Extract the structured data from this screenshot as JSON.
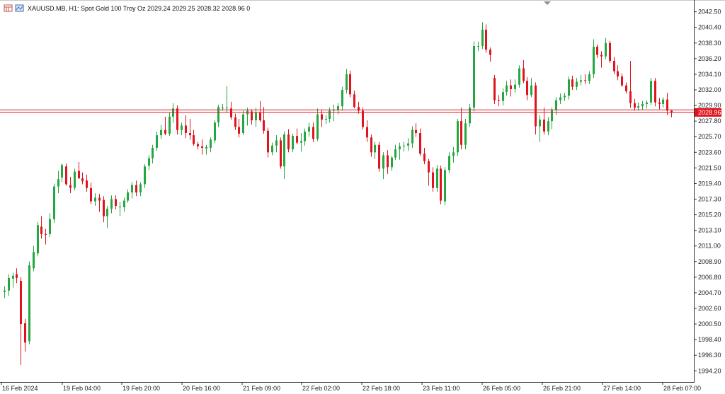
{
  "header": {
    "symbol": "XAUUSD.MB",
    "timeframe": "H1",
    "description": "Spot Gold 100 Troy Oz",
    "ohlc": "2029.24 2029.25 2028.32 2028.96",
    "volume": "0",
    "text": "XAUUSD.MB, H1:  Spot Gold 100 Troy Oz  2029.24 2029.25 2028.32 2028.96  0"
  },
  "icons": [
    "chart-window-icon",
    "trade-panel-icon"
  ],
  "colors": {
    "bull": "#26a641",
    "bear": "#e0141e",
    "wick_bull": "#26a641",
    "wick_bear": "#e0141e",
    "price_line": "#d81b2a",
    "price_tag_bg": "#e0141e",
    "axis": "#222222"
  },
  "chart_data": {
    "type": "candlestick",
    "symbol": "XAUUSD.MB",
    "timeframe": "H1",
    "ylim": [
      1992.8,
      2043.8
    ],
    "y_ticks": [
      "2042.50",
      "2040.40",
      "2038.30",
      "2036.20",
      "2034.10",
      "2032.00",
      "2029.90",
      "2027.80",
      "2025.70",
      "2023.60",
      "2021.50",
      "2019.40",
      "2017.30",
      "2015.20",
      "2013.10",
      "2011.00",
      "2008.90",
      "2006.80",
      "2004.70",
      "2002.60",
      "2000.50",
      "1998.40",
      "1996.30",
      "1994.20"
    ],
    "x_labels": [
      "16 Feb 2024",
      "19 Feb 04:00",
      "19 Feb 20:00",
      "20 Feb 16:00",
      "21 Feb 09:00",
      "22 Feb 02:00",
      "22 Feb 18:00",
      "23 Feb 11:00",
      "26 Feb 05:00",
      "26 Feb 21:00",
      "27 Feb 14:00",
      "28 Feb 07:00"
    ],
    "current_price": "2028.96",
    "current_price_value": 2028.96,
    "ask_price_value": 2029.3,
    "candles": [
      {
        "o": 2004.8,
        "h": 2005.6,
        "l": 2004.0,
        "c": 2005.0
      },
      {
        "o": 2005.0,
        "h": 2007.2,
        "l": 2004.3,
        "c": 2006.7
      },
      {
        "o": 2006.6,
        "h": 2007.4,
        "l": 2005.4,
        "c": 2007.0
      },
      {
        "o": 2007.2,
        "h": 2008.0,
        "l": 2006.0,
        "c": 2006.7
      },
      {
        "o": 2006.3,
        "h": 2006.8,
        "l": 1995.0,
        "c": 2000.5
      },
      {
        "o": 2000.6,
        "h": 2001.2,
        "l": 1996.8,
        "c": 1998.0
      },
      {
        "o": 1998.2,
        "h": 2008.9,
        "l": 1997.8,
        "c": 2008.4
      },
      {
        "o": 2008.0,
        "h": 2011.0,
        "l": 2007.6,
        "c": 2010.2
      },
      {
        "o": 2010.0,
        "h": 2014.2,
        "l": 2009.6,
        "c": 2013.8
      },
      {
        "o": 2013.6,
        "h": 2015.0,
        "l": 2012.0,
        "c": 2012.6
      },
      {
        "o": 2012.6,
        "h": 2013.3,
        "l": 2011.2,
        "c": 2012.5
      },
      {
        "o": 2012.6,
        "h": 2015.4,
        "l": 2012.2,
        "c": 2014.6
      },
      {
        "o": 2014.6,
        "h": 2019.4,
        "l": 2014.1,
        "c": 2019.0
      },
      {
        "o": 2019.0,
        "h": 2021.1,
        "l": 2018.1,
        "c": 2020.0
      },
      {
        "o": 2020.2,
        "h": 2022.1,
        "l": 2019.6,
        "c": 2021.9
      },
      {
        "o": 2021.7,
        "h": 2022.1,
        "l": 2019.1,
        "c": 2019.3
      },
      {
        "o": 2019.2,
        "h": 2020.3,
        "l": 2018.1,
        "c": 2018.8
      },
      {
        "o": 2018.8,
        "h": 2021.4,
        "l": 2018.5,
        "c": 2021.0
      },
      {
        "o": 2021.1,
        "h": 2022.3,
        "l": 2020.0,
        "c": 2020.1
      },
      {
        "o": 2020.1,
        "h": 2020.9,
        "l": 2019.3,
        "c": 2019.7
      },
      {
        "o": 2019.8,
        "h": 2020.6,
        "l": 2018.3,
        "c": 2018.8
      },
      {
        "o": 2018.8,
        "h": 2019.5,
        "l": 2016.6,
        "c": 2017.0
      },
      {
        "o": 2017.0,
        "h": 2018.1,
        "l": 2016.4,
        "c": 2017.5
      },
      {
        "o": 2017.5,
        "h": 2018.0,
        "l": 2015.6,
        "c": 2017.1
      },
      {
        "o": 2017.2,
        "h": 2017.7,
        "l": 2014.2,
        "c": 2015.0
      },
      {
        "o": 2015.0,
        "h": 2016.4,
        "l": 2013.4,
        "c": 2016.0
      },
      {
        "o": 2016.0,
        "h": 2017.8,
        "l": 2015.4,
        "c": 2017.3
      },
      {
        "o": 2017.3,
        "h": 2017.8,
        "l": 2015.9,
        "c": 2016.4
      },
      {
        "o": 2016.3,
        "h": 2016.9,
        "l": 2015.0,
        "c": 2016.3
      },
      {
        "o": 2016.2,
        "h": 2017.5,
        "l": 2015.6,
        "c": 2017.1
      },
      {
        "o": 2017.1,
        "h": 2018.6,
        "l": 2016.8,
        "c": 2018.2
      },
      {
        "o": 2018.2,
        "h": 2019.6,
        "l": 2017.4,
        "c": 2019.2
      },
      {
        "o": 2019.2,
        "h": 2019.8,
        "l": 2017.7,
        "c": 2018.2
      },
      {
        "o": 2018.2,
        "h": 2019.6,
        "l": 2017.7,
        "c": 2019.3
      },
      {
        "o": 2019.3,
        "h": 2022.0,
        "l": 2018.8,
        "c": 2021.7
      },
      {
        "o": 2021.8,
        "h": 2023.2,
        "l": 2021.2,
        "c": 2022.8
      },
      {
        "o": 2022.8,
        "h": 2024.6,
        "l": 2022.1,
        "c": 2024.2
      },
      {
        "o": 2024.2,
        "h": 2026.4,
        "l": 2023.8,
        "c": 2025.9
      },
      {
        "o": 2025.9,
        "h": 2027.3,
        "l": 2025.4,
        "c": 2026.6
      },
      {
        "o": 2026.6,
        "h": 2028.4,
        "l": 2025.9,
        "c": 2026.1
      },
      {
        "o": 2026.1,
        "h": 2029.0,
        "l": 2025.8,
        "c": 2028.4
      },
      {
        "o": 2028.4,
        "h": 2030.2,
        "l": 2027.6,
        "c": 2029.5
      },
      {
        "o": 2029.5,
        "h": 2029.9,
        "l": 2026.0,
        "c": 2026.6
      },
      {
        "o": 2026.6,
        "h": 2027.6,
        "l": 2025.9,
        "c": 2027.2
      },
      {
        "o": 2027.2,
        "h": 2028.6,
        "l": 2025.5,
        "c": 2026.2
      },
      {
        "o": 2026.2,
        "h": 2028.1,
        "l": 2025.3,
        "c": 2025.9
      },
      {
        "o": 2025.9,
        "h": 2026.6,
        "l": 2024.5,
        "c": 2024.7
      },
      {
        "o": 2024.7,
        "h": 2025.0,
        "l": 2024.0,
        "c": 2024.4
      },
      {
        "o": 2024.4,
        "h": 2025.3,
        "l": 2023.3,
        "c": 2024.2
      },
      {
        "o": 2024.1,
        "h": 2024.6,
        "l": 2023.3,
        "c": 2024.3
      },
      {
        "o": 2024.2,
        "h": 2025.6,
        "l": 2023.6,
        "c": 2025.3
      },
      {
        "o": 2025.2,
        "h": 2027.9,
        "l": 2024.8,
        "c": 2027.6
      },
      {
        "o": 2027.6,
        "h": 2030.0,
        "l": 2027.0,
        "c": 2029.7
      },
      {
        "o": 2029.6,
        "h": 2030.1,
        "l": 2029.2,
        "c": 2029.6
      },
      {
        "o": 2029.6,
        "h": 2032.5,
        "l": 2029.0,
        "c": 2029.6
      },
      {
        "o": 2029.5,
        "h": 2030.4,
        "l": 2028.0,
        "c": 2028.3
      },
      {
        "o": 2028.3,
        "h": 2028.8,
        "l": 2026.6,
        "c": 2027.0
      },
      {
        "o": 2027.0,
        "h": 2028.1,
        "l": 2025.6,
        "c": 2026.1
      },
      {
        "o": 2026.2,
        "h": 2029.2,
        "l": 2025.9,
        "c": 2028.7
      },
      {
        "o": 2028.7,
        "h": 2029.6,
        "l": 2027.2,
        "c": 2029.2
      },
      {
        "o": 2029.1,
        "h": 2029.4,
        "l": 2027.3,
        "c": 2027.9
      },
      {
        "o": 2027.9,
        "h": 2029.6,
        "l": 2027.0,
        "c": 2029.0
      },
      {
        "o": 2029.0,
        "h": 2030.5,
        "l": 2027.7,
        "c": 2027.9
      },
      {
        "o": 2027.9,
        "h": 2029.7,
        "l": 2026.1,
        "c": 2026.5
      },
      {
        "o": 2026.5,
        "h": 2026.9,
        "l": 2022.9,
        "c": 2023.6
      },
      {
        "o": 2023.6,
        "h": 2024.9,
        "l": 2023.2,
        "c": 2024.5
      },
      {
        "o": 2024.5,
        "h": 2025.9,
        "l": 2023.6,
        "c": 2025.2
      },
      {
        "o": 2025.2,
        "h": 2025.6,
        "l": 2021.4,
        "c": 2021.7
      },
      {
        "o": 2021.7,
        "h": 2026.4,
        "l": 2020.0,
        "c": 2026.0
      },
      {
        "o": 2026.0,
        "h": 2026.7,
        "l": 2023.6,
        "c": 2024.0
      },
      {
        "o": 2024.0,
        "h": 2026.1,
        "l": 2023.6,
        "c": 2025.8
      },
      {
        "o": 2025.8,
        "h": 2026.8,
        "l": 2024.7,
        "c": 2024.9
      },
      {
        "o": 2024.9,
        "h": 2026.2,
        "l": 2023.7,
        "c": 2025.1
      },
      {
        "o": 2025.1,
        "h": 2026.8,
        "l": 2024.5,
        "c": 2026.4
      },
      {
        "o": 2026.4,
        "h": 2027.6,
        "l": 2025.7,
        "c": 2027.0
      },
      {
        "o": 2027.0,
        "h": 2027.6,
        "l": 2025.0,
        "c": 2025.4
      },
      {
        "o": 2025.4,
        "h": 2029.5,
        "l": 2025.1,
        "c": 2028.7
      },
      {
        "o": 2028.7,
        "h": 2029.3,
        "l": 2027.0,
        "c": 2028.0
      },
      {
        "o": 2028.0,
        "h": 2028.6,
        "l": 2027.4,
        "c": 2028.1
      },
      {
        "o": 2028.1,
        "h": 2029.6,
        "l": 2027.6,
        "c": 2029.2
      },
      {
        "o": 2029.2,
        "h": 2030.0,
        "l": 2027.8,
        "c": 2029.3
      },
      {
        "o": 2029.3,
        "h": 2030.2,
        "l": 2028.7,
        "c": 2029.8
      },
      {
        "o": 2029.8,
        "h": 2032.4,
        "l": 2029.2,
        "c": 2032.0
      },
      {
        "o": 2032.0,
        "h": 2034.8,
        "l": 2031.5,
        "c": 2034.1
      },
      {
        "o": 2034.1,
        "h": 2034.6,
        "l": 2031.0,
        "c": 2031.4
      },
      {
        "o": 2031.4,
        "h": 2031.9,
        "l": 2029.5,
        "c": 2029.7
      },
      {
        "o": 2029.7,
        "h": 2030.4,
        "l": 2028.8,
        "c": 2029.2
      },
      {
        "o": 2029.2,
        "h": 2029.6,
        "l": 2026.7,
        "c": 2027.0
      },
      {
        "o": 2027.0,
        "h": 2027.9,
        "l": 2025.0,
        "c": 2025.6
      },
      {
        "o": 2025.6,
        "h": 2026.0,
        "l": 2023.0,
        "c": 2023.6
      },
      {
        "o": 2023.6,
        "h": 2025.0,
        "l": 2022.7,
        "c": 2024.6
      },
      {
        "o": 2024.6,
        "h": 2025.0,
        "l": 2021.0,
        "c": 2021.4
      },
      {
        "o": 2021.4,
        "h": 2023.6,
        "l": 2020.0,
        "c": 2023.2
      },
      {
        "o": 2023.2,
        "h": 2023.9,
        "l": 2020.7,
        "c": 2021.6
      },
      {
        "o": 2021.6,
        "h": 2023.1,
        "l": 2021.1,
        "c": 2022.9
      },
      {
        "o": 2022.9,
        "h": 2024.6,
        "l": 2022.6,
        "c": 2024.0
      },
      {
        "o": 2024.0,
        "h": 2024.9,
        "l": 2022.6,
        "c": 2024.4
      },
      {
        "o": 2024.4,
        "h": 2025.0,
        "l": 2023.7,
        "c": 2024.5
      },
      {
        "o": 2024.5,
        "h": 2025.5,
        "l": 2023.8,
        "c": 2024.8
      },
      {
        "o": 2024.8,
        "h": 2027.1,
        "l": 2024.2,
        "c": 2026.6
      },
      {
        "o": 2026.6,
        "h": 2027.5,
        "l": 2025.7,
        "c": 2026.2
      },
      {
        "o": 2026.2,
        "h": 2026.8,
        "l": 2023.1,
        "c": 2023.4
      },
      {
        "o": 2023.4,
        "h": 2024.2,
        "l": 2022.0,
        "c": 2022.4
      },
      {
        "o": 2022.4,
        "h": 2022.7,
        "l": 2019.1,
        "c": 2020.9
      },
      {
        "o": 2020.9,
        "h": 2021.6,
        "l": 2018.3,
        "c": 2018.8
      },
      {
        "o": 2018.8,
        "h": 2021.9,
        "l": 2018.3,
        "c": 2021.4
      },
      {
        "o": 2021.4,
        "h": 2021.8,
        "l": 2016.6,
        "c": 2017.1
      },
      {
        "o": 2017.0,
        "h": 2021.6,
        "l": 2016.5,
        "c": 2021.2
      },
      {
        "o": 2021.2,
        "h": 2023.6,
        "l": 2020.8,
        "c": 2023.1
      },
      {
        "o": 2023.1,
        "h": 2024.3,
        "l": 2022.2,
        "c": 2023.6
      },
      {
        "o": 2023.6,
        "h": 2028.1,
        "l": 2023.1,
        "c": 2027.8
      },
      {
        "o": 2027.8,
        "h": 2029.6,
        "l": 2024.0,
        "c": 2024.6
      },
      {
        "o": 2024.6,
        "h": 2028.1,
        "l": 2024.0,
        "c": 2027.5
      },
      {
        "o": 2027.5,
        "h": 2030.1,
        "l": 2027.0,
        "c": 2029.6
      },
      {
        "o": 2029.6,
        "h": 2038.5,
        "l": 2029.1,
        "c": 2037.9
      },
      {
        "o": 2037.9,
        "h": 2038.5,
        "l": 2037.2,
        "c": 2037.9
      },
      {
        "o": 2037.9,
        "h": 2041.1,
        "l": 2037.5,
        "c": 2040.1
      },
      {
        "o": 2040.1,
        "h": 2040.8,
        "l": 2037.0,
        "c": 2037.4
      },
      {
        "o": 2037.4,
        "h": 2037.7,
        "l": 2035.8,
        "c": 2036.7
      },
      {
        "o": 2033.6,
        "h": 2034.0,
        "l": 2030.1,
        "c": 2030.6
      },
      {
        "o": 2030.6,
        "h": 2031.3,
        "l": 2029.8,
        "c": 2030.5
      },
      {
        "o": 2030.5,
        "h": 2032.2,
        "l": 2029.9,
        "c": 2031.7
      },
      {
        "o": 2031.7,
        "h": 2033.2,
        "l": 2031.2,
        "c": 2032.6
      },
      {
        "o": 2032.6,
        "h": 2033.4,
        "l": 2031.1,
        "c": 2032.1
      },
      {
        "o": 2032.1,
        "h": 2033.4,
        "l": 2031.6,
        "c": 2032.7
      },
      {
        "o": 2032.7,
        "h": 2035.3,
        "l": 2032.3,
        "c": 2034.9
      },
      {
        "o": 2034.9,
        "h": 2036.0,
        "l": 2032.9,
        "c": 2033.2
      },
      {
        "o": 2033.2,
        "h": 2033.7,
        "l": 2030.6,
        "c": 2031.3
      },
      {
        "o": 2031.3,
        "h": 2033.6,
        "l": 2031.0,
        "c": 2032.6
      },
      {
        "o": 2032.6,
        "h": 2033.0,
        "l": 2026.0,
        "c": 2027.1
      },
      {
        "o": 2027.1,
        "h": 2028.6,
        "l": 2025.0,
        "c": 2028.0
      },
      {
        "o": 2028.0,
        "h": 2029.6,
        "l": 2026.0,
        "c": 2026.4
      },
      {
        "o": 2026.4,
        "h": 2028.3,
        "l": 2025.9,
        "c": 2027.8
      },
      {
        "o": 2027.8,
        "h": 2029.6,
        "l": 2026.7,
        "c": 2029.3
      },
      {
        "o": 2029.3,
        "h": 2031.0,
        "l": 2028.6,
        "c": 2030.6
      },
      {
        "o": 2030.6,
        "h": 2031.5,
        "l": 2030.1,
        "c": 2031.0
      },
      {
        "o": 2031.0,
        "h": 2031.6,
        "l": 2030.5,
        "c": 2031.2
      },
      {
        "o": 2031.2,
        "h": 2033.8,
        "l": 2030.7,
        "c": 2033.4
      },
      {
        "o": 2033.4,
        "h": 2033.9,
        "l": 2032.0,
        "c": 2032.4
      },
      {
        "o": 2032.4,
        "h": 2033.6,
        "l": 2032.0,
        "c": 2033.1
      },
      {
        "o": 2033.1,
        "h": 2034.0,
        "l": 2032.6,
        "c": 2033.3
      },
      {
        "o": 2033.3,
        "h": 2034.1,
        "l": 2032.8,
        "c": 2033.2
      },
      {
        "o": 2033.2,
        "h": 2034.5,
        "l": 2032.8,
        "c": 2034.1
      },
      {
        "o": 2034.1,
        "h": 2038.8,
        "l": 2033.6,
        "c": 2037.8
      },
      {
        "o": 2037.8,
        "h": 2038.1,
        "l": 2036.3,
        "c": 2036.7
      },
      {
        "o": 2036.7,
        "h": 2037.2,
        "l": 2035.0,
        "c": 2036.5
      },
      {
        "o": 2036.5,
        "h": 2039.0,
        "l": 2036.1,
        "c": 2038.3
      },
      {
        "o": 2038.3,
        "h": 2038.6,
        "l": 2035.6,
        "c": 2035.9
      },
      {
        "o": 2035.9,
        "h": 2036.4,
        "l": 2034.1,
        "c": 2034.5
      },
      {
        "o": 2034.5,
        "h": 2035.3,
        "l": 2033.3,
        "c": 2033.8
      },
      {
        "o": 2033.8,
        "h": 2034.2,
        "l": 2032.4,
        "c": 2032.6
      },
      {
        "o": 2032.6,
        "h": 2033.0,
        "l": 2031.5,
        "c": 2031.8
      },
      {
        "o": 2031.8,
        "h": 2035.9,
        "l": 2029.6,
        "c": 2030.2
      },
      {
        "o": 2030.2,
        "h": 2030.8,
        "l": 2029.2,
        "c": 2029.6
      },
      {
        "o": 2029.6,
        "h": 2030.3,
        "l": 2029.2,
        "c": 2029.8
      },
      {
        "o": 2029.8,
        "h": 2030.5,
        "l": 2029.3,
        "c": 2030.1
      },
      {
        "o": 2030.1,
        "h": 2030.6,
        "l": 2029.5,
        "c": 2030.3
      },
      {
        "o": 2030.3,
        "h": 2033.6,
        "l": 2030.0,
        "c": 2033.2
      },
      {
        "o": 2033.2,
        "h": 2033.6,
        "l": 2029.8,
        "c": 2030.3
      },
      {
        "o": 2030.3,
        "h": 2030.9,
        "l": 2029.4,
        "c": 2030.1
      },
      {
        "o": 2030.1,
        "h": 2031.0,
        "l": 2029.6,
        "c": 2030.7
      },
      {
        "o": 2030.7,
        "h": 2031.6,
        "l": 2028.6,
        "c": 2029.2
      },
      {
        "o": 2029.2,
        "h": 2029.3,
        "l": 2028.3,
        "c": 2029.0
      }
    ]
  }
}
